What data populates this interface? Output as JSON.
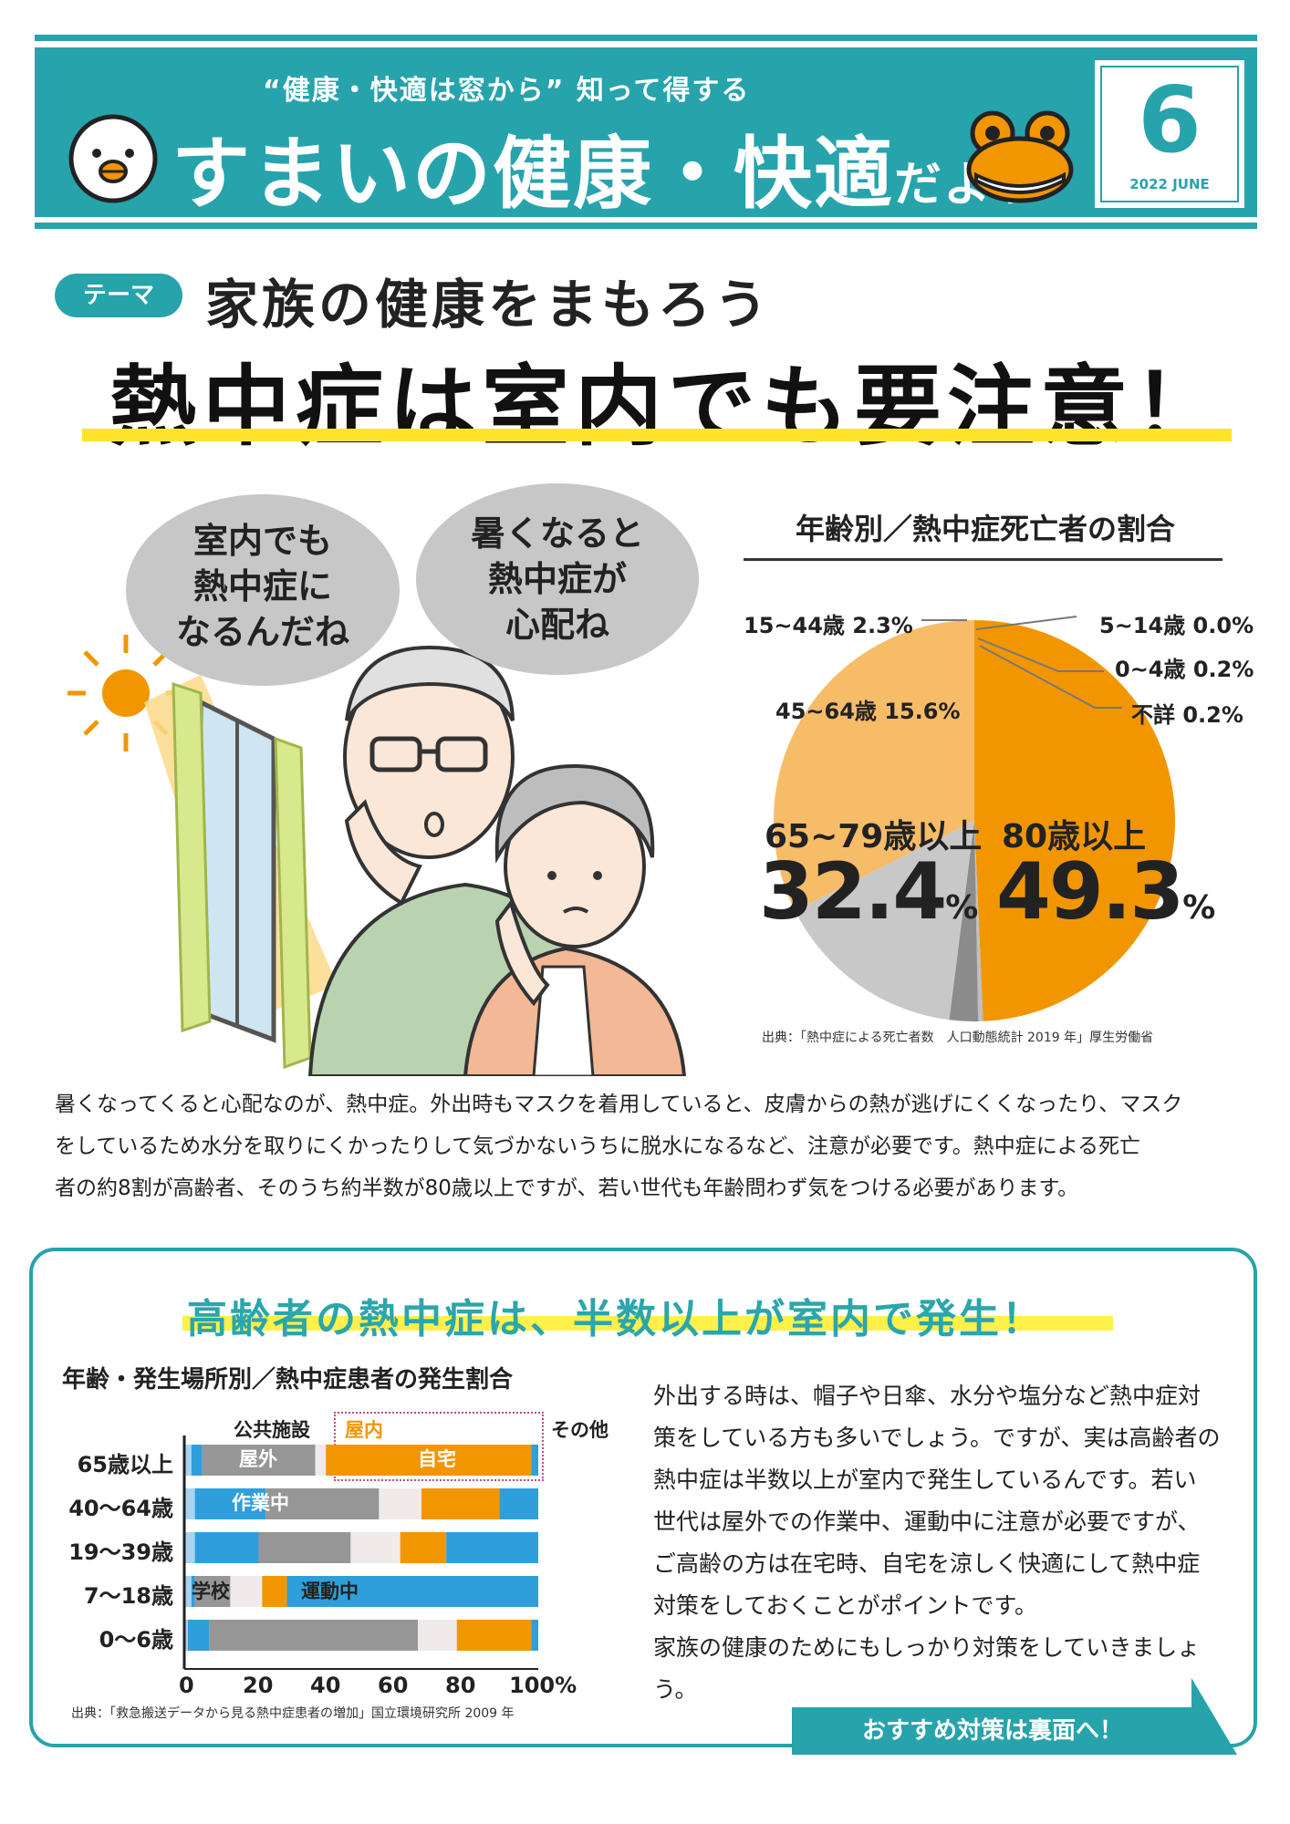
{
  "header": {
    "subtitle": "“健康・快適は窓から” 知って得する",
    "title": "すまいの健康・快適",
    "title_suffix": "だより",
    "month": "6",
    "date": "2022 JUNE"
  },
  "theme": {
    "badge": "テーマ",
    "title": "家族の健康をまもろう",
    "main_title": "熱中症は室内でも要注意！"
  },
  "bubbles": {
    "left": [
      "室内でも",
      "熱中症に",
      "なるんだね"
    ],
    "right": [
      "暑くなると",
      "熱中症が",
      "心配ね"
    ]
  },
  "pie": {
    "title": "年齢別／熱中症死亡者の割合",
    "source": "出典：「熱中症による死亡者数　人口動態統計 2019 年」厚生労働省",
    "labels": {
      "a1544": "15~44歳 2.3%",
      "a4564": "45~64歳 15.6%",
      "a514": "5~14歳 0.0%",
      "a04": "0~4歳 0.2%",
      "unknown": "不詳 0.2%",
      "a6579": "65~79歳以上",
      "a6579_value": "32.4",
      "a80": "80歳以上",
      "a80_value": "49.3",
      "pct": "%"
    }
  },
  "chart_data": [
    {
      "type": "pie",
      "title": "年齢別／熱中症死亡者の割合",
      "categories": [
        "80歳以上",
        "不詳",
        "0~4歳",
        "5~14歳",
        "15~44歳",
        "45~64歳",
        "65~79歳以上"
      ],
      "values": [
        49.3,
        0.2,
        0.2,
        0.0,
        2.3,
        15.6,
        32.4
      ],
      "colors": [
        "#f29600",
        "#bdbdbd",
        "#bdbdbd",
        "#bdbdbd",
        "#8c8c8c",
        "#c8c8c8",
        "#f7bc68"
      ]
    },
    {
      "type": "bar",
      "stacked": true,
      "orientation": "horizontal",
      "title": "年齢・発生場所別／熱中症患者の発生割合",
      "categories": [
        "65歳以上",
        "40〜64歳",
        "19〜39歳",
        "7〜18歳",
        "0〜6歳"
      ],
      "series": [
        {
          "values": [
            2,
            3,
            3,
            2,
            1
          ],
          "color": "#a9d3f1"
        },
        {
          "values": [
            3,
            20,
            18,
            1,
            6
          ],
          "color": "#2e9fdb"
        },
        {
          "values": [
            32,
            32,
            26,
            10,
            59
          ],
          "color": "#969696"
        },
        {
          "values": [
            3,
            12,
            14,
            9,
            11
          ],
          "color": "#f0eaea"
        },
        {
          "values": [
            58,
            22,
            13,
            7,
            21
          ],
          "color": "#f29600"
        },
        {
          "values": [
            2,
            11,
            26,
            71,
            2
          ],
          "color": "#2e9fdb"
        }
      ],
      "xlim": [
        0,
        100
      ],
      "xticks": [
        "0",
        "20",
        "40",
        "60",
        "80",
        "100%"
      ]
    }
  ],
  "lower": {
    "title": "高齢者の熱中症は、半数以上が室内で発生！",
    "bar_title": "年齢・発生場所別／熱中症患者の発生割合",
    "labels": {
      "public": "公共施設",
      "indoor": "屋内",
      "other": "その他",
      "outdoor": "屋外",
      "home": "自宅",
      "work": "作業中",
      "school": "学校",
      "sport": "運動中"
    },
    "rows": [
      "65歳以上",
      "40〜64歳",
      "19〜39歳",
      "7〜18歳",
      "0〜6歳"
    ],
    "ticks": [
      "0",
      "20",
      "40",
      "60",
      "80",
      "100%"
    ],
    "source": "出典：「救急搬送データから見る熱中症患者の増加」国立環境研究所 2009 年",
    "text": [
      "外出する時は、帽子や日傘、水分や塩分など熱中症対",
      "策をしている方も多いでしょう。ですが、実は高齢者の",
      "熱中症は半数以上が室内で発生しているんです。若い",
      "世代は屋外での作業中、運動中に注意が必要ですが、",
      "ご高齢の方は在宅時、自宅を涼しく快適にして熱中症",
      "対策をしておくことがポイントです。",
      "家族の健康のためにもしっかり対策をしていきましょう。"
    ],
    "next": "おすすめ対策は裏面へ！"
  },
  "paragraph": [
    "暑くなってくると心配なのが、熱中症。外出時もマスクを着用していると、皮膚からの熱が逃げにくくなったり、マスク",
    "をしているため水分を取りにくかったりして気づかないうちに脱水になるなど、注意が必要です。熱中症による死亡",
    "者の約8割が高齢者、そのうち約半数が80歳以上ですが、若い世代も年齢問わず気をつける必要があります。"
  ]
}
